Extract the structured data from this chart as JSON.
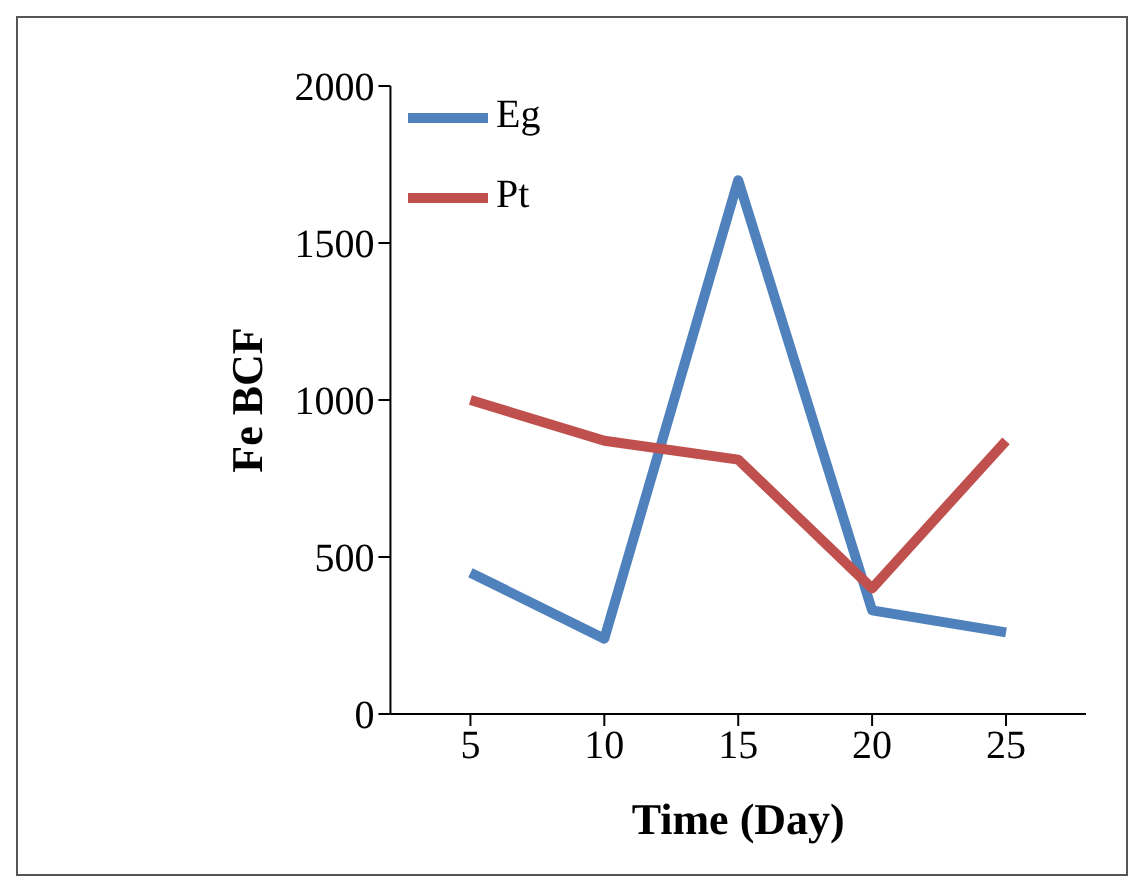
{
  "chart_data": {
    "type": "line",
    "xlabel": "Time (Day)",
    "ylabel": "Fe BCF",
    "categories": [
      "5",
      "10",
      "15",
      "20",
      "25"
    ],
    "series": [
      {
        "name": "Eg",
        "color": "#4f81bd",
        "values": [
          450,
          240,
          1700,
          330,
          260
        ]
      },
      {
        "name": "Pt",
        "color": "#c0504d",
        "values": [
          1000,
          870,
          810,
          400,
          870
        ]
      }
    ],
    "ylim": [
      0,
      2000
    ],
    "yticks": [
      0,
      500,
      1000,
      1500,
      2000
    ],
    "grid": false,
    "legend": "top left",
    "marker": "none",
    "line_style": "solid"
  }
}
